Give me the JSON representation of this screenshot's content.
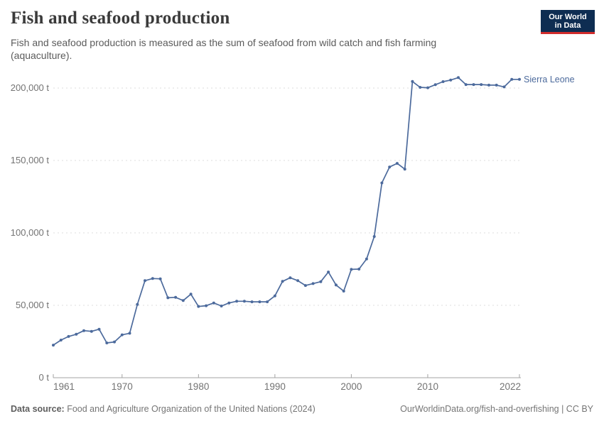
{
  "header": {
    "title": "Fish and seafood production",
    "subtitle": "Fish and seafood production is measured as the sum of seafood from wild catch and fish farming (aquaculture)."
  },
  "logo": {
    "line1": "Our World",
    "line2": "in Data",
    "bg_color": "#0E2D52",
    "accent_color": "#D12C2C"
  },
  "footer": {
    "datasource_label": "Data source:",
    "datasource_text": "Food and Agriculture Organization of the United Nations (2024)",
    "attribution": "OurWorldinData.org/fish-and-overfishing | CC BY"
  },
  "chart_data": {
    "type": "line",
    "title": "Fish and seafood production",
    "xlabel": "",
    "ylabel": "",
    "unit": "t",
    "grid": "horizontal-dashed",
    "legend_position": "end-of-line-label",
    "xlim": [
      1961,
      2022
    ],
    "ylim": [
      0,
      200000
    ],
    "yticks": [
      {
        "value": 0,
        "label": "0 t"
      },
      {
        "value": 50000,
        "label": "50,000 t"
      },
      {
        "value": 100000,
        "label": "100,000 t"
      },
      {
        "value": 150000,
        "label": "150,000 t"
      },
      {
        "value": 200000,
        "label": "200,000 t"
      }
    ],
    "xticks": [
      {
        "value": 1961,
        "label": "1961"
      },
      {
        "value": 1970,
        "label": "1970"
      },
      {
        "value": 1980,
        "label": "1980"
      },
      {
        "value": 1990,
        "label": "1990"
      },
      {
        "value": 2000,
        "label": "2000"
      },
      {
        "value": 2010,
        "label": "2010"
      },
      {
        "value": 2022,
        "label": "2022"
      }
    ],
    "series": [
      {
        "name": "Sierra Leone",
        "color": "#4C6A9C",
        "x": [
          1961,
          1962,
          1963,
          1964,
          1965,
          1966,
          1967,
          1968,
          1969,
          1970,
          1971,
          1972,
          1973,
          1974,
          1975,
          1976,
          1977,
          1978,
          1979,
          1980,
          1981,
          1982,
          1983,
          1984,
          1985,
          1986,
          1987,
          1988,
          1989,
          1990,
          1991,
          1992,
          1993,
          1994,
          1995,
          1996,
          1997,
          1998,
          1999,
          2000,
          2001,
          2002,
          2003,
          2004,
          2005,
          2006,
          2007,
          2008,
          2009,
          2010,
          2011,
          2012,
          2013,
          2014,
          2015,
          2016,
          2017,
          2018,
          2019,
          2020,
          2021,
          2022
        ],
        "values": [
          22500,
          26000,
          28500,
          30000,
          32500,
          32000,
          33500,
          24000,
          24700,
          29600,
          30700,
          50600,
          67000,
          68500,
          68300,
          55200,
          55500,
          53300,
          57700,
          49200,
          49700,
          51600,
          49500,
          51600,
          52800,
          52800,
          52400,
          52400,
          52400,
          56500,
          66500,
          69000,
          67000,
          63700,
          65000,
          66300,
          73000,
          64000,
          59800,
          74800,
          75000,
          82000,
          97500,
          134500,
          145500,
          148000,
          144000,
          204500,
          200500,
          200200,
          202300,
          204400,
          205500,
          207200,
          202400,
          202400,
          202400,
          202000,
          202000,
          200800,
          206000,
          206000
        ]
      }
    ]
  },
  "style": {
    "gridline_color": "#dcdcdc",
    "axis_color": "#a3a3a3",
    "tick_label_color": "#737373"
  }
}
